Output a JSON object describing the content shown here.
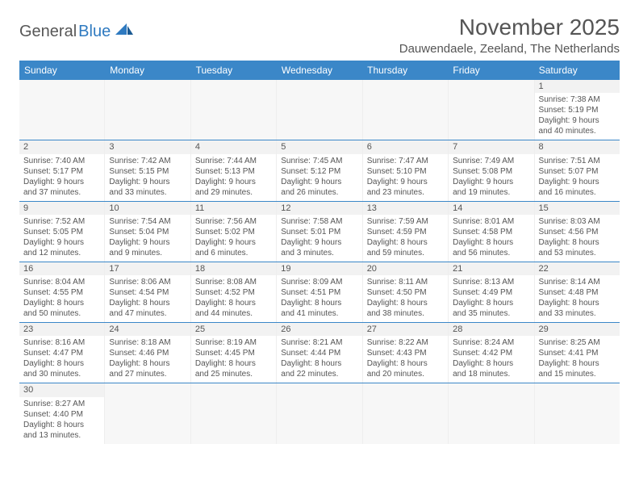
{
  "brand": {
    "part1": "General",
    "part2": "Blue"
  },
  "title": "November 2025",
  "location": "Dauwendaele, Zeeland, The Netherlands",
  "day_headers": [
    "Sunday",
    "Monday",
    "Tuesday",
    "Wednesday",
    "Thursday",
    "Friday",
    "Saturday"
  ],
  "colors": {
    "header_bg": "#3b87c8",
    "header_text": "#ffffff",
    "border": "#3b87c8",
    "text": "#555555",
    "cell_alt": "#f2f2f2"
  },
  "weeks": [
    [
      null,
      null,
      null,
      null,
      null,
      null,
      {
        "n": "1",
        "sr": "Sunrise: 7:38 AM",
        "ss": "Sunset: 5:19 PM",
        "d1": "Daylight: 9 hours",
        "d2": "and 40 minutes."
      }
    ],
    [
      {
        "n": "2",
        "sr": "Sunrise: 7:40 AM",
        "ss": "Sunset: 5:17 PM",
        "d1": "Daylight: 9 hours",
        "d2": "and 37 minutes."
      },
      {
        "n": "3",
        "sr": "Sunrise: 7:42 AM",
        "ss": "Sunset: 5:15 PM",
        "d1": "Daylight: 9 hours",
        "d2": "and 33 minutes."
      },
      {
        "n": "4",
        "sr": "Sunrise: 7:44 AM",
        "ss": "Sunset: 5:13 PM",
        "d1": "Daylight: 9 hours",
        "d2": "and 29 minutes."
      },
      {
        "n": "5",
        "sr": "Sunrise: 7:45 AM",
        "ss": "Sunset: 5:12 PM",
        "d1": "Daylight: 9 hours",
        "d2": "and 26 minutes."
      },
      {
        "n": "6",
        "sr": "Sunrise: 7:47 AM",
        "ss": "Sunset: 5:10 PM",
        "d1": "Daylight: 9 hours",
        "d2": "and 23 minutes."
      },
      {
        "n": "7",
        "sr": "Sunrise: 7:49 AM",
        "ss": "Sunset: 5:08 PM",
        "d1": "Daylight: 9 hours",
        "d2": "and 19 minutes."
      },
      {
        "n": "8",
        "sr": "Sunrise: 7:51 AM",
        "ss": "Sunset: 5:07 PM",
        "d1": "Daylight: 9 hours",
        "d2": "and 16 minutes."
      }
    ],
    [
      {
        "n": "9",
        "sr": "Sunrise: 7:52 AM",
        "ss": "Sunset: 5:05 PM",
        "d1": "Daylight: 9 hours",
        "d2": "and 12 minutes."
      },
      {
        "n": "10",
        "sr": "Sunrise: 7:54 AM",
        "ss": "Sunset: 5:04 PM",
        "d1": "Daylight: 9 hours",
        "d2": "and 9 minutes."
      },
      {
        "n": "11",
        "sr": "Sunrise: 7:56 AM",
        "ss": "Sunset: 5:02 PM",
        "d1": "Daylight: 9 hours",
        "d2": "and 6 minutes."
      },
      {
        "n": "12",
        "sr": "Sunrise: 7:58 AM",
        "ss": "Sunset: 5:01 PM",
        "d1": "Daylight: 9 hours",
        "d2": "and 3 minutes."
      },
      {
        "n": "13",
        "sr": "Sunrise: 7:59 AM",
        "ss": "Sunset: 4:59 PM",
        "d1": "Daylight: 8 hours",
        "d2": "and 59 minutes."
      },
      {
        "n": "14",
        "sr": "Sunrise: 8:01 AM",
        "ss": "Sunset: 4:58 PM",
        "d1": "Daylight: 8 hours",
        "d2": "and 56 minutes."
      },
      {
        "n": "15",
        "sr": "Sunrise: 8:03 AM",
        "ss": "Sunset: 4:56 PM",
        "d1": "Daylight: 8 hours",
        "d2": "and 53 minutes."
      }
    ],
    [
      {
        "n": "16",
        "sr": "Sunrise: 8:04 AM",
        "ss": "Sunset: 4:55 PM",
        "d1": "Daylight: 8 hours",
        "d2": "and 50 minutes."
      },
      {
        "n": "17",
        "sr": "Sunrise: 8:06 AM",
        "ss": "Sunset: 4:54 PM",
        "d1": "Daylight: 8 hours",
        "d2": "and 47 minutes."
      },
      {
        "n": "18",
        "sr": "Sunrise: 8:08 AM",
        "ss": "Sunset: 4:52 PM",
        "d1": "Daylight: 8 hours",
        "d2": "and 44 minutes."
      },
      {
        "n": "19",
        "sr": "Sunrise: 8:09 AM",
        "ss": "Sunset: 4:51 PM",
        "d1": "Daylight: 8 hours",
        "d2": "and 41 minutes."
      },
      {
        "n": "20",
        "sr": "Sunrise: 8:11 AM",
        "ss": "Sunset: 4:50 PM",
        "d1": "Daylight: 8 hours",
        "d2": "and 38 minutes."
      },
      {
        "n": "21",
        "sr": "Sunrise: 8:13 AM",
        "ss": "Sunset: 4:49 PM",
        "d1": "Daylight: 8 hours",
        "d2": "and 35 minutes."
      },
      {
        "n": "22",
        "sr": "Sunrise: 8:14 AM",
        "ss": "Sunset: 4:48 PM",
        "d1": "Daylight: 8 hours",
        "d2": "and 33 minutes."
      }
    ],
    [
      {
        "n": "23",
        "sr": "Sunrise: 8:16 AM",
        "ss": "Sunset: 4:47 PM",
        "d1": "Daylight: 8 hours",
        "d2": "and 30 minutes."
      },
      {
        "n": "24",
        "sr": "Sunrise: 8:18 AM",
        "ss": "Sunset: 4:46 PM",
        "d1": "Daylight: 8 hours",
        "d2": "and 27 minutes."
      },
      {
        "n": "25",
        "sr": "Sunrise: 8:19 AM",
        "ss": "Sunset: 4:45 PM",
        "d1": "Daylight: 8 hours",
        "d2": "and 25 minutes."
      },
      {
        "n": "26",
        "sr": "Sunrise: 8:21 AM",
        "ss": "Sunset: 4:44 PM",
        "d1": "Daylight: 8 hours",
        "d2": "and 22 minutes."
      },
      {
        "n": "27",
        "sr": "Sunrise: 8:22 AM",
        "ss": "Sunset: 4:43 PM",
        "d1": "Daylight: 8 hours",
        "d2": "and 20 minutes."
      },
      {
        "n": "28",
        "sr": "Sunrise: 8:24 AM",
        "ss": "Sunset: 4:42 PM",
        "d1": "Daylight: 8 hours",
        "d2": "and 18 minutes."
      },
      {
        "n": "29",
        "sr": "Sunrise: 8:25 AM",
        "ss": "Sunset: 4:41 PM",
        "d1": "Daylight: 8 hours",
        "d2": "and 15 minutes."
      }
    ],
    [
      {
        "n": "30",
        "sr": "Sunrise: 8:27 AM",
        "ss": "Sunset: 4:40 PM",
        "d1": "Daylight: 8 hours",
        "d2": "and 13 minutes."
      },
      null,
      null,
      null,
      null,
      null,
      null
    ]
  ]
}
